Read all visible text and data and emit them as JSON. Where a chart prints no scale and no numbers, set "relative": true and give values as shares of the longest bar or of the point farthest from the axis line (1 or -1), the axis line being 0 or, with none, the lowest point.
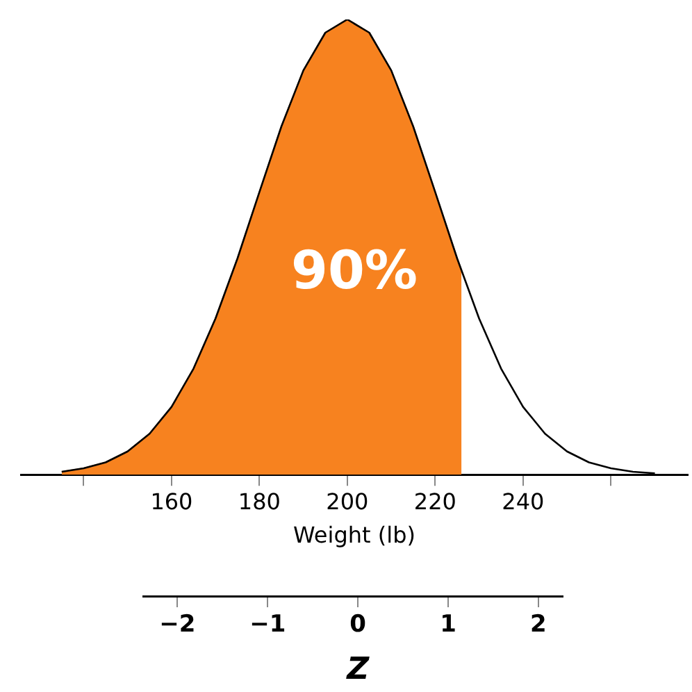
{
  "chart_data": {
    "type": "area",
    "relative": true,
    "xlabel": "Weight (lb)",
    "xlim": [
      125.7,
      277.5
    ],
    "xticks": [
      {
        "value": 140,
        "label": null
      },
      160,
      180,
      200,
      220,
      240,
      {
        "value": 260,
        "label": null
      }
    ],
    "x2label": "Z",
    "x2lim": [
      -2.38,
      2.27
    ],
    "x2ticks": [
      {
        "value": -2,
        "label": "−2"
      },
      {
        "value": -1,
        "label": "−1"
      },
      0,
      1,
      2
    ],
    "grid": false,
    "legend": false,
    "marker": "none",
    "line_style": "solid",
    "annotations": [
      "90%"
    ],
    "series": [
      {
        "type": "area",
        "color": "#f7821f",
        "x": [
          135,
          140,
          145,
          150,
          155,
          160,
          165,
          170,
          175,
          180,
          185,
          190,
          195,
          200,
          205,
          210,
          215,
          220,
          225,
          226
        ],
        "values": [
          0.0065,
          0.014,
          0.027,
          0.051,
          0.09,
          0.149,
          0.233,
          0.343,
          0.475,
          0.621,
          0.765,
          0.888,
          0.971,
          1,
          0.971,
          0.888,
          0.765,
          0.621,
          0.475,
          0.448
        ]
      },
      {
        "type": "line",
        "color": "#000000",
        "x": [
          135,
          140,
          145,
          150,
          155,
          160,
          165,
          170,
          175,
          180,
          185,
          190,
          195,
          200,
          205,
          210,
          215,
          220,
          225,
          230,
          235,
          240,
          245,
          250,
          255,
          260,
          265,
          270
        ],
        "values": [
          0.0065,
          0.014,
          0.027,
          0.051,
          0.09,
          0.149,
          0.233,
          0.343,
          0.475,
          0.621,
          0.765,
          0.888,
          0.971,
          1,
          0.971,
          0.888,
          0.765,
          0.621,
          0.475,
          0.343,
          0.233,
          0.149,
          0.09,
          0.051,
          0.027,
          0.014,
          0.0065,
          0.003
        ]
      }
    ]
  }
}
